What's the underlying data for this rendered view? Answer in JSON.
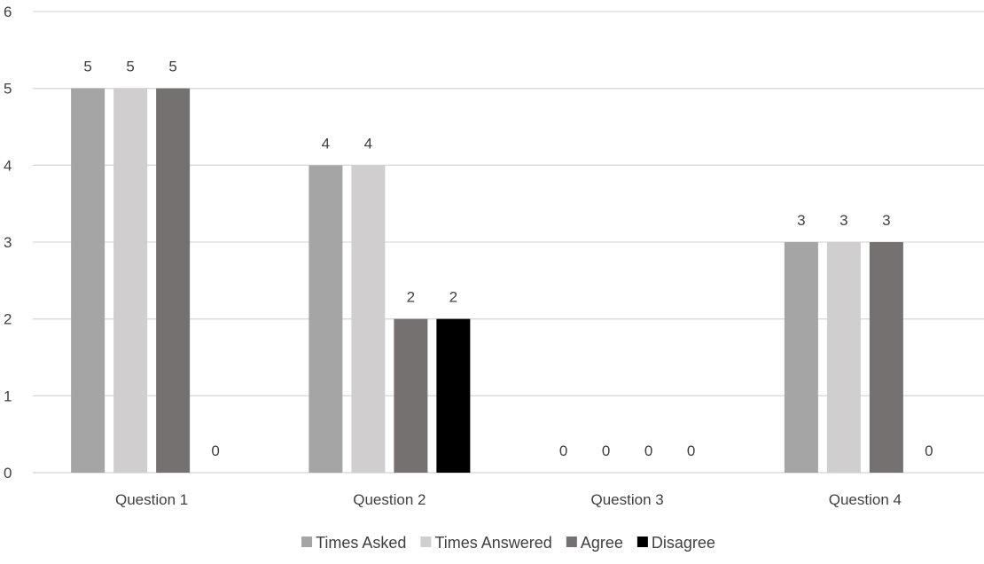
{
  "chart_data": {
    "type": "bar",
    "categories": [
      "Question 1",
      "Question 2",
      "Question 3",
      "Question 4"
    ],
    "series": [
      {
        "name": "Times Asked",
        "values": [
          5,
          4,
          0,
          3
        ],
        "color": "#a5a5a5"
      },
      {
        "name": "Times Answered",
        "values": [
          5,
          4,
          0,
          3
        ],
        "color": "#d0cece"
      },
      {
        "name": "Agree",
        "values": [
          5,
          2,
          0,
          3
        ],
        "color": "#767171"
      },
      {
        "name": "Disagree",
        "values": [
          0,
          2,
          0,
          0
        ],
        "color": "#000000"
      }
    ],
    "ylim": [
      0,
      6
    ],
    "yticks": [
      0,
      1,
      2,
      3,
      4,
      5,
      6
    ],
    "grid": true,
    "legend_position": "bottom",
    "data_labels": true,
    "gridline_color": "#d9d9d9",
    "text_color": "#404040"
  }
}
